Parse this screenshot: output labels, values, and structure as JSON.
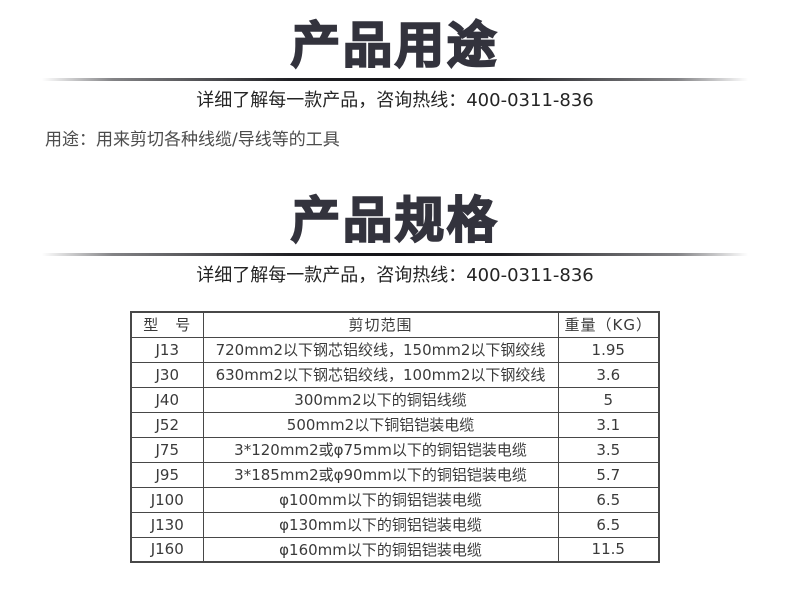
{
  "colors": {
    "title_color": "#33333d",
    "body_text_color": "#4c4c4c",
    "hotline_color": "#242424",
    "table_border_color": "#484848",
    "table_text_color": "#3a3a3a",
    "background": "#ffffff"
  },
  "usage_section": {
    "title": "产品用途",
    "hotline": "详细了解每一款产品，咨询热线：400-0311-836",
    "usage_note": "用途：用来剪切各种线缆/导线等的工具"
  },
  "spec_section": {
    "title": "产品规格",
    "hotline": "详细了解每一款产品，咨询热线：400-0311-836"
  },
  "spec_table": {
    "headers": [
      "型　号",
      "剪切范围",
      "重量（KG）"
    ],
    "rows": [
      [
        "J13",
        "720mm2以下钢芯铝绞线，150mm2以下钢绞线",
        "1.95"
      ],
      [
        "J30",
        "630mm2以下钢芯铝绞线，100mm2以下钢绞线",
        "3.6"
      ],
      [
        "J40",
        "300mm2以下的铜铝线缆",
        "5"
      ],
      [
        "J52",
        "500mm2以下铜铝铠装电缆",
        "3.1"
      ],
      [
        "J75",
        "3*120mm2或φ75mm以下的铜铝铠装电缆",
        "3.5"
      ],
      [
        "J95",
        "3*185mm2或φ90mm以下的铜铝铠装电缆",
        "5.7"
      ],
      [
        "J100",
        "φ100mm以下的铜铝铠装电缆",
        "6.5"
      ],
      [
        "J130",
        "φ130mm以下的铜铝铠装电缆",
        "6.5"
      ],
      [
        "J160",
        "φ160mm以下的铜铝铠装电缆",
        "11.5"
      ]
    ]
  }
}
